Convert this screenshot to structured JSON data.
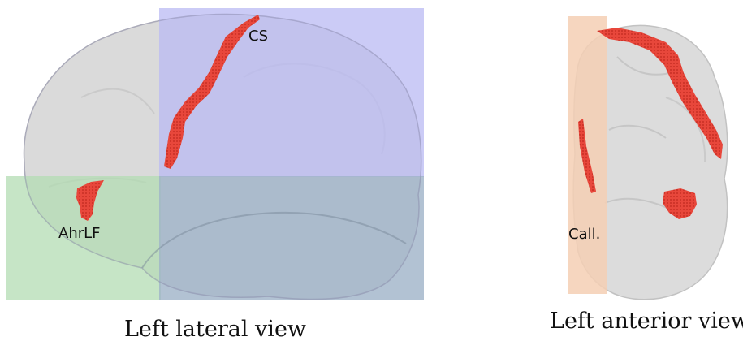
{
  "figure": {
    "panels": [
      {
        "name": "lateral",
        "caption": "Left lateral view",
        "labels": {
          "cs": "CS",
          "ahrlf": "AhrLF"
        },
        "colors": {
          "blue_box": "#b9b9f3",
          "green_box": "#b3dcb3",
          "overlap_box": "#9fb3c8",
          "sulcus": "#e8473b",
          "brain": "#d6d6d6"
        }
      },
      {
        "name": "anterior",
        "caption": "Left anterior view",
        "labels": {
          "call": "Call."
        },
        "colors": {
          "orange_box": "#f5cfb4",
          "sulcus": "#e8473b",
          "brain": "#d8d8d8"
        }
      }
    ]
  }
}
